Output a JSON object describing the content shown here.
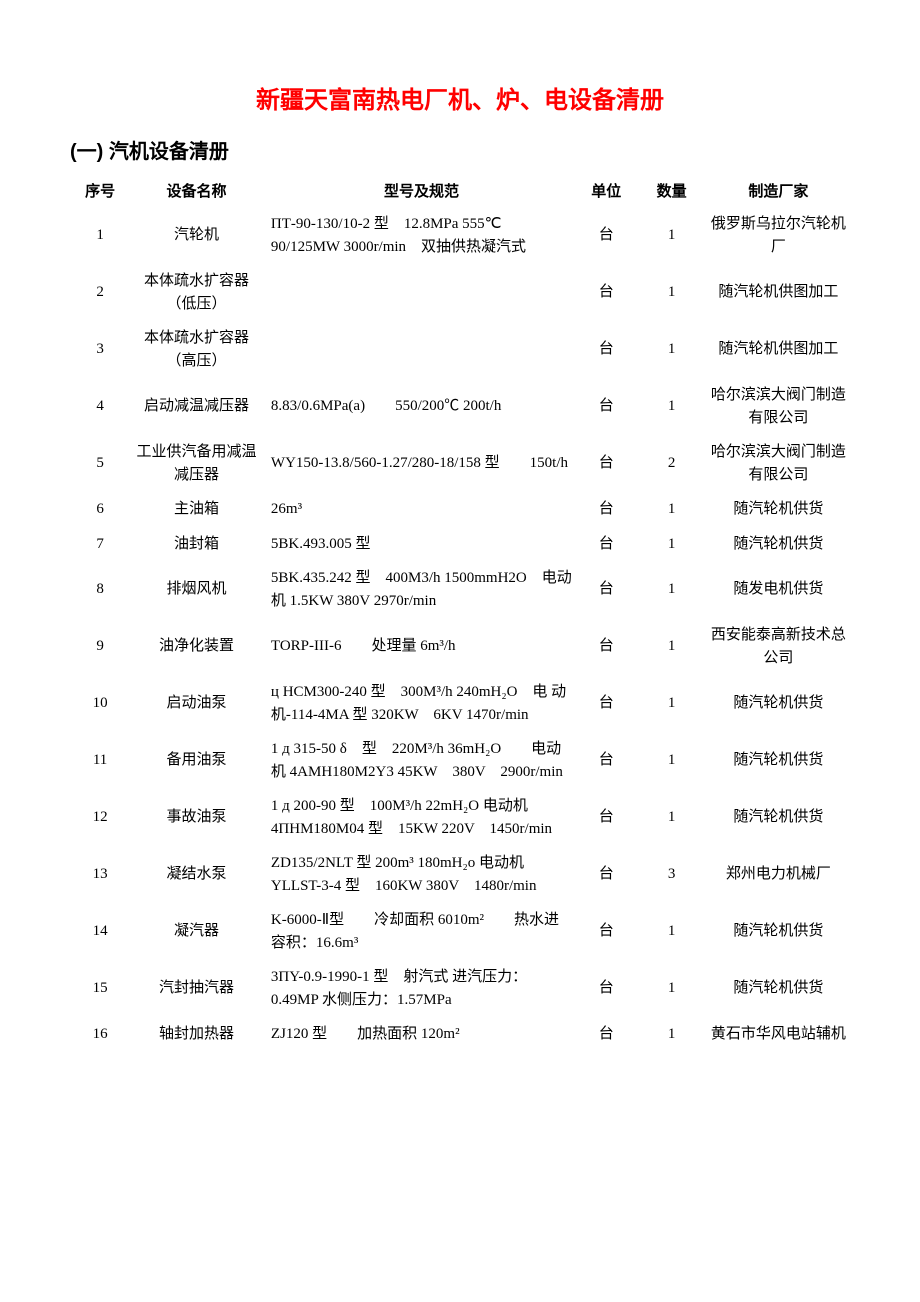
{
  "title": "新疆天富南热电厂机、炉、电设备清册",
  "section": "(一) 汽机设备清册",
  "columns": {
    "seq": "序号",
    "name": "设备名称",
    "spec": "型号及规范",
    "unit": "单位",
    "qty": "数量",
    "maker": "制造厂家"
  },
  "rows": [
    {
      "seq": "1",
      "name": "汽轮机",
      "spec": "ПТ-90-130/10-2 型　12.8MPa 555℃ 90/125MW 3000r/min　双抽供热凝汽式",
      "unit": "台",
      "qty": "1",
      "maker": "俄罗斯乌拉尔汽轮机厂"
    },
    {
      "seq": "2",
      "name": "本体疏水扩容器（低压）",
      "spec": "",
      "unit": "台",
      "qty": "1",
      "maker": "随汽轮机供图加工"
    },
    {
      "seq": "3",
      "name": "本体疏水扩容器（高压）",
      "spec": "",
      "unit": "台",
      "qty": "1",
      "maker": "随汽轮机供图加工"
    },
    {
      "seq": "4",
      "name": "启动减温减压器",
      "spec": "8.83/0.6MPa(a)　　550/200℃ 200t/h",
      "unit": "台",
      "qty": "1",
      "maker": "哈尔滨滨大阀门制造有限公司"
    },
    {
      "seq": "5",
      "name": "工业供汽备用减温减压器",
      "spec": "WY150-13.8/560-1.27/280-18/158 型　　150t/h",
      "unit": "台",
      "qty": "2",
      "maker": "哈尔滨滨大阀门制造有限公司"
    },
    {
      "seq": "6",
      "name": "主油箱",
      "spec": "26m³",
      "unit": "台",
      "qty": "1",
      "maker": "随汽轮机供货"
    },
    {
      "seq": "7",
      "name": "油封箱",
      "spec": "5BK.493.005 型",
      "unit": "台",
      "qty": "1",
      "maker": "随汽轮机供货"
    },
    {
      "seq": "8",
      "name": "排烟风机",
      "spec": "5BK.435.242 型　400M3/h 1500mmH2O　电动机 1.5KW 380V 2970r/min",
      "unit": "台",
      "qty": "1",
      "maker": "随发电机供货"
    },
    {
      "seq": "9",
      "name": "油净化装置",
      "spec": "TORP-III-6　　处理量 6m³/h",
      "unit": "台",
      "qty": "1",
      "maker": "西安能泰高新技术总公司"
    },
    {
      "seq": "10",
      "name": "启动油泵",
      "spec": "ц HCM300-240 型　300M³/h 240mH₂O　电 动 机-114-4MA 型 320KW　6KV 1470r/min",
      "unit": "台",
      "qty": "1",
      "maker": "随汽轮机供货"
    },
    {
      "seq": "11",
      "name": "备用油泵",
      "spec": "1 д 315-50 δ　型　220M³/h 36mH₂O　　电动机 4AMH180M2Y3 45KW　380V　2900r/min",
      "unit": "台",
      "qty": "1",
      "maker": "随汽轮机供货"
    },
    {
      "seq": "12",
      "name": "事故油泵",
      "spec": "1 д 200-90 型　100M³/h 22mH₂O 电动机 4ПHM180M04 型　15KW 220V　1450r/min",
      "unit": "台",
      "qty": "1",
      "maker": "随汽轮机供货"
    },
    {
      "seq": "13",
      "name": "凝结水泵",
      "spec": "ZD135/2NLT 型 200m³ 180mH₂o 电动机 YLLST-3-4 型　160KW 380V　1480r/min",
      "unit": "台",
      "qty": "3",
      "maker": "郑州电力机械厂"
    },
    {
      "seq": "14",
      "name": "凝汽器",
      "spec": "K-6000-Ⅱ型　　冷却面积 6010m²　　热水进容积：16.6m³",
      "unit": "台",
      "qty": "1",
      "maker": "随汽轮机供货"
    },
    {
      "seq": "15",
      "name": "汽封抽汽器",
      "spec": "3ПY-0.9-1990-1 型　射汽式 进汽压力：0.49MP 水侧压力：1.57MPa",
      "unit": "台",
      "qty": "1",
      "maker": "随汽轮机供货"
    },
    {
      "seq": "16",
      "name": "轴封加热器",
      "spec": "ZJ120 型　　加热面积 120m²",
      "unit": "台",
      "qty": "1",
      "maker": "黄石市华风电站辅机"
    }
  ]
}
